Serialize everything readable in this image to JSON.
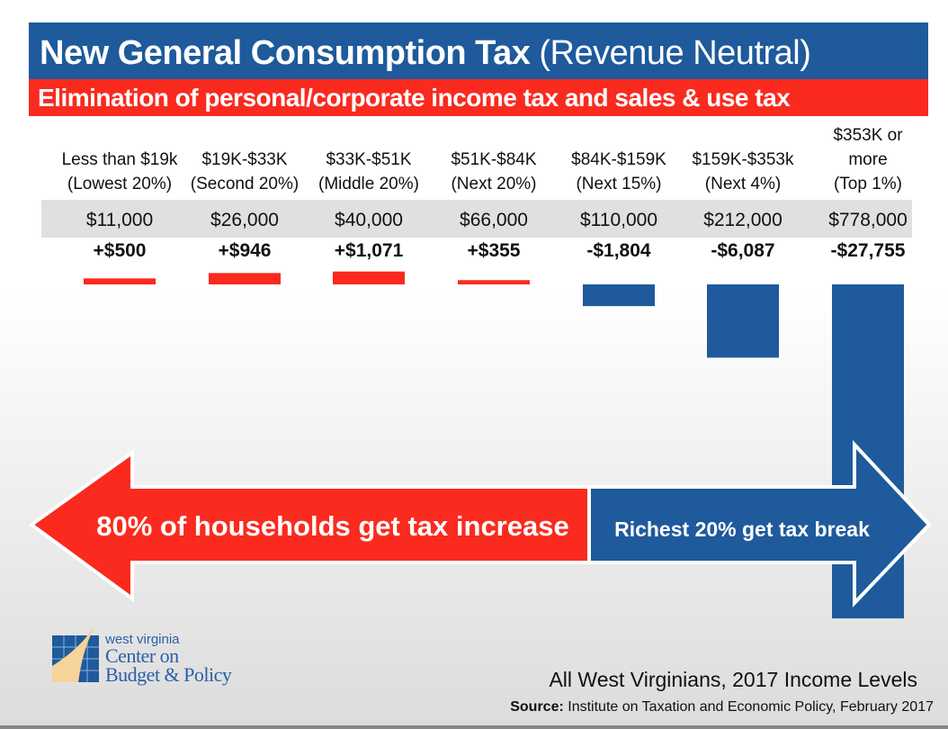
{
  "header": {
    "title_bold": "New General Consumption Tax",
    "title_regular": "(Revenue Neutral)",
    "subtitle": "Elimination of personal/corporate income tax and sales & use tax"
  },
  "chart_data": {
    "type": "bar",
    "title": "New General Consumption Tax (Revenue Neutral)",
    "subtitle": "Elimination of personal/corporate income tax and sales & use tax",
    "categories": [
      {
        "range": "Less than $19k",
        "group": "(Lowest 20%)"
      },
      {
        "range": "$19K-$33K",
        "group": "(Second 20%)"
      },
      {
        "range": "$33K-$51K",
        "group": "(Middle 20%)"
      },
      {
        "range": "$51K-$84K",
        "group": "(Next 20%)"
      },
      {
        "range": "$84K-$159K",
        "group": "(Next 15%)"
      },
      {
        "range": "$159K-$353k",
        "group": "(Next 4%)"
      },
      {
        "range": "$353K or more",
        "group": "(Top 1%)"
      }
    ],
    "average_income_labels": [
      "$11,000",
      "$26,000",
      "$40,000",
      "$66,000",
      "$110,000",
      "$212,000",
      "$778,000"
    ],
    "change_labels": [
      "+$500",
      "+$946",
      "+$1,071",
      "+$355",
      "-$1,804",
      "-$6,087",
      "-$27,755"
    ],
    "values": [
      500,
      946,
      1071,
      355,
      -1804,
      -6087,
      -27755
    ],
    "colors": {
      "increase": "#fa2a1f",
      "decrease": "#1e5a9c"
    }
  },
  "arrows": {
    "left": "80% of households get tax increase",
    "right": "Richest 20% get tax break"
  },
  "logo": {
    "line1": "west virginia",
    "line2": "Center on",
    "line3": "Budget & Policy"
  },
  "footer": {
    "caption": "All West Virginians, 2017 Income Levels",
    "source_label": "Source:",
    "source_text": "Institute on Taxation and Economic Policy, February 2017"
  }
}
